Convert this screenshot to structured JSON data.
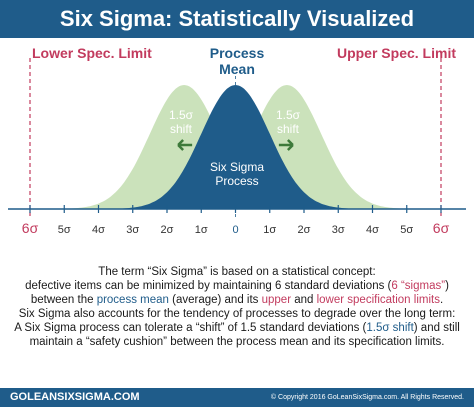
{
  "title": "Six Sigma: Statistically Visualized",
  "chart_data": {
    "type": "area",
    "title": "Six Sigma: Statistically Visualized",
    "x_ticks": [
      "6σ",
      "5σ",
      "4σ",
      "3σ",
      "2σ",
      "1σ",
      "0",
      "1σ",
      "2σ",
      "3σ",
      "4σ",
      "5σ",
      "6σ"
    ],
    "x_range": [
      -6,
      6
    ],
    "series": [
      {
        "name": "Six Sigma Process",
        "mean": 0,
        "sd": 1,
        "color": "#1f5c8a"
      },
      {
        "mean": -1.5,
        "sd": 1,
        "color": "#b9d8a4"
      },
      {
        "mean": 1.5,
        "sd": 1,
        "color": "#b9d8a4"
      }
    ],
    "annotations": {
      "lower_limit": "Lower Spec. Limit",
      "upper_limit": "Upper Spec. Limit",
      "process_mean": "Process Mean",
      "shift_left": "1.5σ shift",
      "shift_right": "1.5σ shift",
      "curve_label": "Six Sigma Process"
    },
    "colors": {
      "limit": "#c23b5e",
      "axis": "#1f5c8a",
      "mean": "#1f5c8a"
    }
  },
  "text": {
    "p1_a": "The term “Six Sigma” is based on a statistical concept:",
    "p1_b": "defective items can be minimized by maintaining 6 standard deviations (",
    "p1_c": "6 “sigmas”",
    "p1_d": ")",
    "p1_e": "between the ",
    "p1_f": "process mean",
    "p1_g": " (average) and its ",
    "p1_h": "upper",
    "p1_i": " and ",
    "p1_j": "lower specification limits",
    "p1_k": ".",
    "p2_a": "Six Sigma also accounts for the tendency of processes to degrade over the long term:",
    "p2_b": "A Six Sigma process can tolerate a “shift” of 1.5 standard deviations (",
    "p2_c": "1.5σ shift",
    "p2_d": ") and still",
    "p2_e": "maintain a “safety cushion” between the process mean and its specification limits."
  },
  "footer": {
    "logo": "GOLEANSIXSIGMA.COM",
    "copyright": "© Copyright 2016 GoLeanSixSigma.com. All Rights Reserved."
  }
}
